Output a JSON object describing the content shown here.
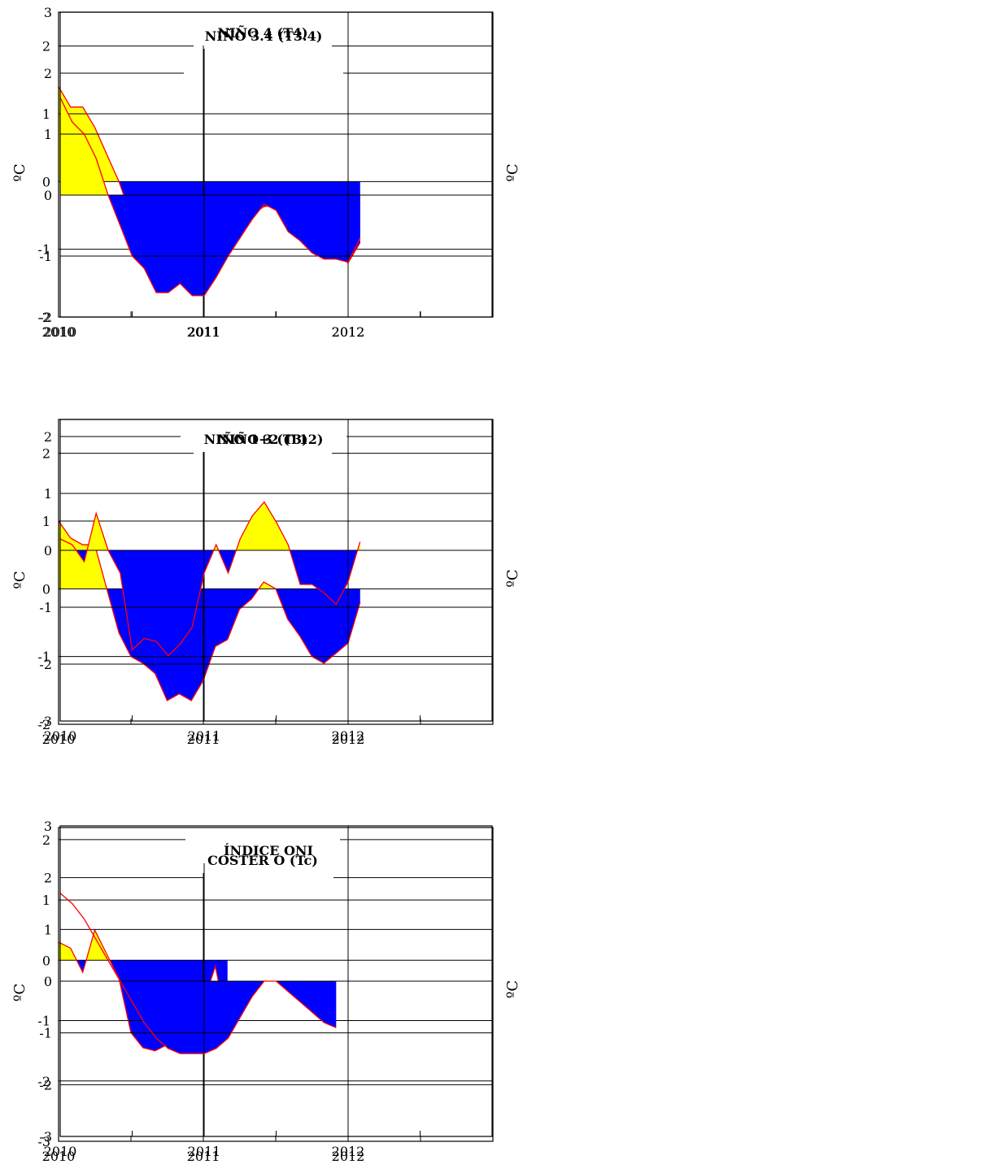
{
  "chart_data": [
    {
      "type": "area",
      "title": "NIÑO 4 (T4)",
      "ylabel": "ºC",
      "xlabel": "",
      "xlim": [
        2010,
        2013
      ],
      "ylim": [
        -2,
        2.5
      ],
      "y_ticks": [
        -2,
        -1,
        0,
        1,
        2
      ],
      "y_gridlines": [
        -1,
        0,
        1,
        2
      ],
      "x_ticks": [
        2010,
        2011,
        2012
      ],
      "x_gridlines": [
        2011,
        2012
      ],
      "fill_colors": {
        "positive": "#ffff00",
        "negative": "#0000ff"
      },
      "line_color": "#ff0000",
      "series": [
        {
          "x": [
            2010.0,
            2010.083,
            2010.167,
            2010.25,
            2010.333,
            2010.417,
            2010.5,
            2010.583,
            2010.667,
            2010.75,
            2010.833,
            2010.917,
            2011.0,
            2011.083,
            2011.167,
            2011.25,
            2011.333,
            2011.417,
            2011.5,
            2011.583,
            2011.667,
            2011.75,
            2011.833,
            2011.917,
            2012.0,
            2012.083
          ],
          "y": [
            1.4,
            1.1,
            1.1,
            0.8,
            0.4,
            0.0,
            -0.5,
            -1.0,
            -1.35,
            -1.35,
            -1.3,
            -1.6,
            -1.6,
            -1.1,
            -0.75,
            -0.6,
            -0.5,
            -0.37,
            -0.35,
            -0.4,
            -0.65,
            -0.75,
            -0.8,
            -1.1,
            -1.2,
            -0.9
          ]
        }
      ]
    },
    {
      "type": "area",
      "title": "NIÑO 3.4 (T3.4)",
      "ylabel": "ºC",
      "xlabel": "",
      "xlim": [
        2010,
        2013
      ],
      "ylim": [
        -2,
        3
      ],
      "y_ticks": [
        -2,
        -1,
        0,
        1,
        2,
        3
      ],
      "y_gridlines": [
        -1,
        0,
        1,
        2
      ],
      "x_ticks": [
        2010,
        2011,
        2012
      ],
      "x_gridlines": [
        2011,
        2012
      ],
      "fill_colors": {
        "positive": "#ffff00",
        "negative": "#0000ff"
      },
      "line_color": "#ff0000",
      "series": [
        {
          "x": [
            2010.0,
            2010.083,
            2010.167,
            2010.25,
            2010.333,
            2010.417,
            2010.5,
            2010.583,
            2010.667,
            2010.75,
            2010.833,
            2010.917,
            2011.0,
            2011.083,
            2011.167,
            2011.25,
            2011.333,
            2011.417,
            2011.5,
            2011.583,
            2011.667,
            2011.75,
            2011.833,
            2011.917,
            2012.0,
            2012.083
          ],
          "y": [
            1.6,
            1.2,
            1.0,
            0.6,
            0.0,
            -0.5,
            -1.0,
            -1.2,
            -1.6,
            -1.6,
            -1.45,
            -1.65,
            -1.65,
            -1.35,
            -1.0,
            -0.7,
            -0.4,
            -0.15,
            -0.25,
            -0.6,
            -0.75,
            -0.95,
            -1.05,
            -1.05,
            -1.1,
            -0.7
          ]
        }
      ]
    },
    {
      "type": "area",
      "title": "NIÑO 3 (T3)",
      "ylabel": "ºC",
      "xlabel": "",
      "xlim": [
        2010,
        2013
      ],
      "ylim": [
        -2,
        2.5
      ],
      "y_ticks": [
        -2,
        -1,
        0,
        1,
        2
      ],
      "y_gridlines": [
        -1,
        0,
        1,
        2
      ],
      "x_ticks": [
        2010,
        2011,
        2012
      ],
      "x_gridlines": [
        2011,
        2012
      ],
      "fill_colors": {
        "positive": "#ffff00",
        "negative": "#0000ff"
      },
      "line_color": "#ff0000",
      "series": [
        {
          "x": [
            2010.0,
            2010.083,
            2010.167,
            2010.25,
            2010.333,
            2010.417,
            2010.5,
            2010.583,
            2010.667,
            2010.75,
            2010.833,
            2010.917,
            2011.0,
            2011.083,
            2011.167,
            2011.25,
            2011.333,
            2011.417,
            2011.5,
            2011.583,
            2011.667,
            2011.75,
            2011.833,
            2011.917,
            2012.0,
            2012.083
          ],
          "y": [
            1.0,
            0.75,
            0.65,
            0.65,
            0.0,
            -0.65,
            -1.0,
            -1.1,
            -1.25,
            -1.65,
            -1.55,
            -1.65,
            -1.35,
            -0.85,
            -0.75,
            -0.3,
            -0.15,
            0.1,
            0.0,
            -0.45,
            -0.7,
            -1.0,
            -1.1,
            -0.95,
            -0.8,
            -0.2
          ]
        }
      ]
    },
    {
      "type": "area",
      "title": "NIÑO 1+2 (T12)",
      "ylabel": "ºC",
      "xlabel": "",
      "xlim": [
        2010,
        2013
      ],
      "ylim": [
        -3,
        2.3
      ],
      "y_ticks": [
        -3,
        -2,
        -1,
        0,
        1,
        2
      ],
      "y_gridlines": [
        -2,
        -1,
        0,
        1,
        2
      ],
      "x_ticks": [
        2010,
        2011,
        2012
      ],
      "x_gridlines": [
        2011,
        2012
      ],
      "fill_colors": {
        "positive": "#ffff00",
        "negative": "#0000ff"
      },
      "line_color": "#ff0000",
      "series": [
        {
          "x": [
            2010.0,
            2010.083,
            2010.167,
            2010.25,
            2010.333,
            2010.417,
            2010.5,
            2010.583,
            2010.667,
            2010.75,
            2010.833,
            2010.917,
            2011.0,
            2011.083,
            2011.167,
            2011.25,
            2011.333,
            2011.417,
            2011.5,
            2011.583,
            2011.667,
            2011.75,
            2011.833,
            2011.917,
            2012.0,
            2012.083
          ],
          "y": [
            0.2,
            0.1,
            -0.2,
            0.65,
            0.0,
            -0.4,
            -1.75,
            -1.55,
            -1.6,
            -1.85,
            -1.65,
            -1.35,
            -0.4,
            0.1,
            -0.4,
            0.2,
            0.6,
            0.85,
            0.5,
            0.1,
            -0.6,
            -0.6,
            -0.75,
            -0.95,
            -0.55,
            0.15
          ]
        }
      ]
    },
    {
      "type": "area",
      "title": "COSTER O (Tc)",
      "ylabel": "ºC",
      "xlabel": "",
      "xlim": [
        2010,
        2013
      ],
      "ylim": [
        -3,
        2.2
      ],
      "y_ticks": [
        -3,
        -2,
        -1,
        0,
        1,
        2
      ],
      "y_gridlines": [
        -2,
        -1,
        0,
        1,
        2
      ],
      "x_ticks": [
        2010,
        2011,
        2012
      ],
      "x_gridlines": [
        2011,
        2012
      ],
      "fill_colors": {
        "positive": "#ffff00",
        "negative": "#0000ff"
      },
      "line_color": "#ff0000",
      "series": [
        {
          "x": [
            2010.0,
            2010.083,
            2010.167,
            2010.25,
            2010.333,
            2010.417,
            2010.5,
            2010.583,
            2010.667,
            2010.75,
            2010.833,
            2010.917,
            2011.0,
            2011.083,
            2011.167
          ],
          "y": [
            0.3,
            0.2,
            -0.2,
            0.5,
            0.1,
            -0.3,
            -1.2,
            -1.45,
            -1.5,
            -1.4,
            -1.4,
            -1.4,
            -0.7,
            -0.1,
            -1.1
          ]
        }
      ]
    },
    {
      "type": "area",
      "title": "ÍNDICE ONI",
      "ylabel": "ºC",
      "xlabel": "",
      "xlim": [
        2010,
        2013
      ],
      "ylim": [
        -3,
        3
      ],
      "y_ticks": [
        -3,
        -2,
        -1,
        0,
        1,
        2,
        3
      ],
      "y_gridlines": [
        -2,
        -1,
        0,
        1,
        2
      ],
      "x_ticks": [
        2010,
        2011,
        2012
      ],
      "x_gridlines": [
        2011,
        2012
      ],
      "fill_colors": {
        "positive": "none",
        "negative": "#0000ff"
      },
      "line_color": "#ff0000",
      "series": [
        {
          "x": [
            2010.0,
            2010.083,
            2010.167,
            2010.25,
            2010.333,
            2010.417,
            2010.5,
            2010.583,
            2010.667,
            2010.75,
            2010.833,
            2010.917,
            2011.0,
            2011.083,
            2011.167,
            2011.25,
            2011.333,
            2011.417,
            2011.5,
            2011.583,
            2011.667,
            2011.75,
            2011.833,
            2011.917
          ],
          "y": [
            1.7,
            1.5,
            1.2,
            0.8,
            0.4,
            0.0,
            -0.4,
            -0.8,
            -1.1,
            -1.3,
            -1.4,
            -1.4,
            -1.4,
            -1.3,
            -1.1,
            -0.7,
            -0.3,
            0.0,
            0.0,
            -0.2,
            -0.4,
            -0.6,
            -0.8,
            -0.9
          ]
        }
      ]
    }
  ]
}
